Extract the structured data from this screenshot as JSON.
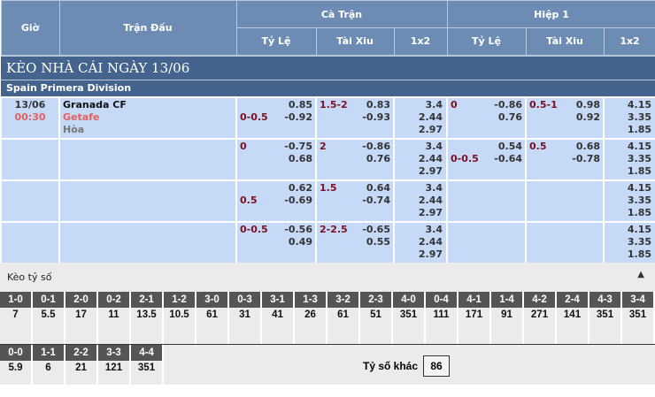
{
  "header": {
    "gio": "Giờ",
    "tran_dau": "Trận Đấu",
    "ca_tran": "Cà Trận",
    "hiep1": "Hiệp 1",
    "ty_le": "Tỷ Lệ",
    "tai_xiu": "Tài Xiu",
    "x12": "1x2"
  },
  "title": "KÈO NHÀ CÁI NGÀY 13/06",
  "league": "Spain Primera Division",
  "match": {
    "date": "13/06",
    "time": "00:30",
    "home": "Granada CF",
    "away": "Getafe",
    "draw": "Hòa"
  },
  "rows": [
    {
      "hdp_line": "0-0.5",
      "hdp_line_pos": "bottom",
      "hdp": [
        "0.85",
        "-0.92"
      ],
      "ou_line": "1.5-2",
      "ou": [
        "0.83",
        "-0.93"
      ],
      "x12": [
        "3.4",
        "2.44",
        "2.97"
      ],
      "h1_hdp_line": "0",
      "h1_hdp_line_pos": "top",
      "h1_hdp": [
        "-0.86",
        "0.76"
      ],
      "h1_ou_line": "0.5-1",
      "h1_ou": [
        "0.98",
        "0.92"
      ],
      "h1_x12": [
        "4.15",
        "3.35",
        "1.85"
      ]
    },
    {
      "hdp_line": "0",
      "hdp_line_pos": "top",
      "hdp": [
        "-0.75",
        "0.68"
      ],
      "ou_line": "2",
      "ou": [
        "-0.86",
        "0.76"
      ],
      "x12": [
        "3.4",
        "2.44",
        "2.97"
      ],
      "h1_hdp_line": "0-0.5",
      "h1_hdp_line_pos": "bottom",
      "h1_hdp": [
        "0.54",
        "-0.64"
      ],
      "h1_ou_line": "0.5",
      "h1_ou": [
        "0.68",
        "-0.78"
      ],
      "h1_x12": [
        "4.15",
        "3.35",
        "1.85"
      ]
    },
    {
      "hdp_line": "0.5",
      "hdp_line_pos": "bottom",
      "hdp": [
        "0.62",
        "-0.69"
      ],
      "ou_line": "1.5",
      "ou": [
        "0.64",
        "-0.74"
      ],
      "x12": [
        "3.4",
        "2.44",
        "2.97"
      ],
      "h1_hdp_line": "",
      "h1_hdp": [],
      "h1_ou_line": "",
      "h1_ou": [],
      "h1_x12": [
        "4.15",
        "3.35",
        "1.85"
      ]
    },
    {
      "hdp_line": "0-0.5",
      "hdp_line_pos": "top",
      "hdp": [
        "-0.56",
        "0.49"
      ],
      "ou_line": "2-2.5",
      "ou": [
        "-0.65",
        "0.55"
      ],
      "x12": [
        "3.4",
        "2.44",
        "2.97"
      ],
      "h1_hdp_line": "",
      "h1_hdp": [],
      "h1_ou_line": "",
      "h1_ou": [],
      "h1_x12": [
        "4.15",
        "3.35",
        "1.85"
      ]
    }
  ],
  "correct_score": {
    "title": "Kèo tỷ số",
    "row1": [
      [
        "1-0",
        "7"
      ],
      [
        "0-1",
        "5.5"
      ],
      [
        "2-0",
        "17"
      ],
      [
        "0-2",
        "11"
      ],
      [
        "2-1",
        "13.5"
      ],
      [
        "1-2",
        "10.5"
      ],
      [
        "3-0",
        "61"
      ],
      [
        "0-3",
        "31"
      ],
      [
        "3-1",
        "41"
      ],
      [
        "1-3",
        "26"
      ],
      [
        "3-2",
        "61"
      ],
      [
        "2-3",
        "51"
      ],
      [
        "4-0",
        "351"
      ],
      [
        "0-4",
        "111"
      ],
      [
        "4-1",
        "171"
      ],
      [
        "1-4",
        "91"
      ],
      [
        "4-2",
        "271"
      ],
      [
        "2-4",
        "141"
      ],
      [
        "4-3",
        "351"
      ],
      [
        "3-4",
        "351"
      ]
    ],
    "row2": [
      [
        "0-0",
        "5.9"
      ],
      [
        "1-1",
        "6"
      ],
      [
        "2-2",
        "21"
      ],
      [
        "3-3",
        "121"
      ],
      [
        "4-4",
        "351"
      ]
    ],
    "other_label": "Tỷ số khác",
    "other_value": "86"
  }
}
